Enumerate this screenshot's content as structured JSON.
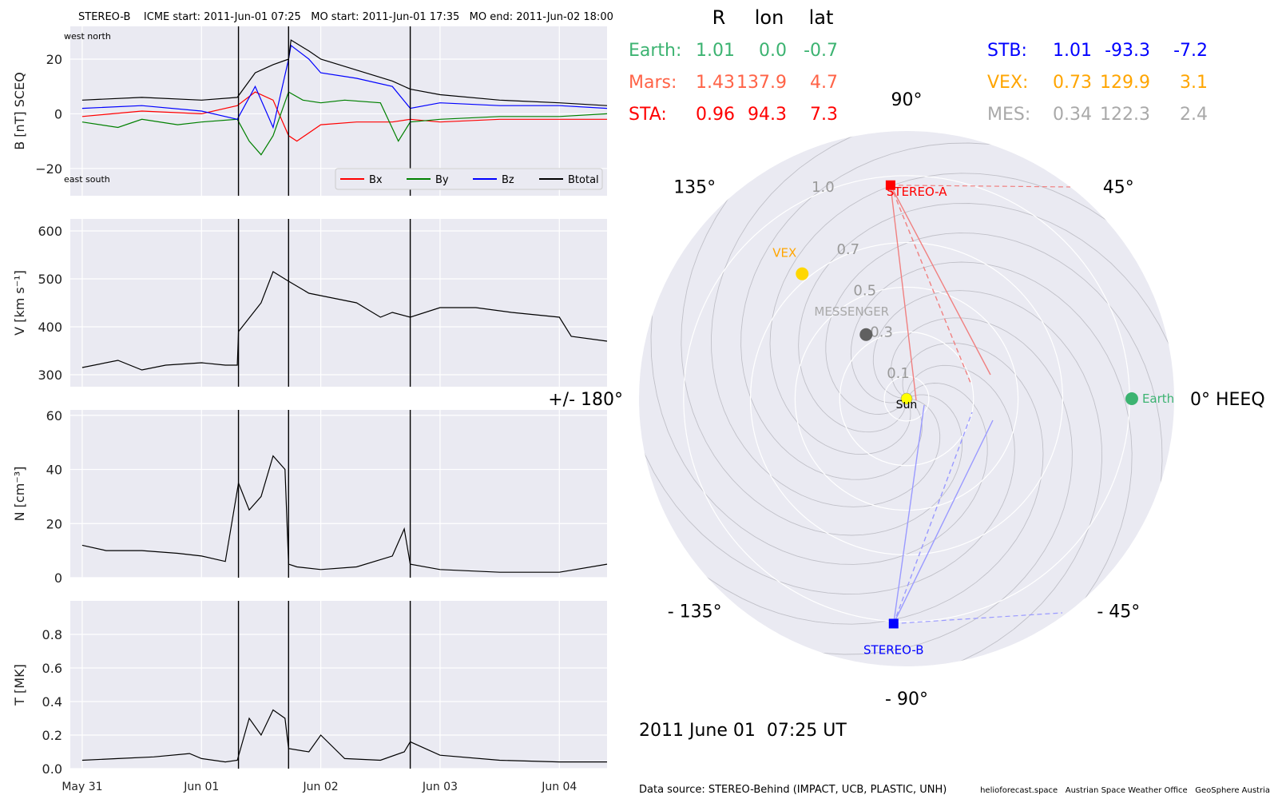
{
  "header": "STEREO-B    ICME start: 2011-Jun-01 07:25   MO start: 2011-Jun-01 17:35   MO end: 2011-Jun-02 18:00",
  "timestamp": "2011 June 01  07:25 UT",
  "data_source": "Data source: STEREO-Behind (IMPACT, UCB, PLASTIC, UNH)",
  "credits": "helioforecast.space   Austrian Space Weather Office   GeoSphere Austria",
  "colors": {
    "bx": "#ff0000",
    "by": "#008000",
    "bz": "#0000ff",
    "btotal": "#000000",
    "earth": "#3cb371",
    "mars": "#ff6347",
    "sta": "#ff0000",
    "stb": "#0000ff",
    "vex": "#ffa500",
    "mes": "#a9a9a9",
    "panel_bg": "#eaeaf2",
    "grid": "#ffffff"
  },
  "chart_data": [
    {
      "type": "line",
      "ylabel": "B [nT] SCEQ",
      "ylim": [
        -30,
        32
      ],
      "yticks": [
        "20",
        "0",
        "−20"
      ],
      "ytick_values": [
        20,
        0,
        -20
      ],
      "corner_labels": {
        "top_left": "west    north",
        "bottom_left": "east    south"
      },
      "event_lines_day": [
        1.31,
        1.73,
        2.75
      ],
      "series": [
        {
          "name": "Bx",
          "color": "#ff0000",
          "x_day": [
            0.0,
            0.5,
            1.0,
            1.3,
            1.45,
            1.6,
            1.73,
            1.8,
            2.0,
            2.3,
            2.6,
            2.75,
            3.0,
            3.5,
            4.0,
            4.4
          ],
          "values": [
            -1,
            1,
            0,
            3,
            8,
            5,
            -8,
            -10,
            -4,
            -3,
            -3,
            -2,
            -3,
            -2,
            -2,
            -2
          ]
        },
        {
          "name": "By",
          "color": "#008000",
          "x_day": [
            0.0,
            0.3,
            0.5,
            0.8,
            1.0,
            1.3,
            1.4,
            1.5,
            1.6,
            1.73,
            1.85,
            2.0,
            2.2,
            2.5,
            2.65,
            2.75,
            3.0,
            3.5,
            4.0,
            4.4
          ],
          "values": [
            -3,
            -5,
            -2,
            -4,
            -3,
            -2,
            -10,
            -15,
            -8,
            8,
            5,
            4,
            5,
            4,
            -10,
            -3,
            -2,
            -1,
            -1,
            0
          ]
        },
        {
          "name": "Bz",
          "color": "#0000ff",
          "x_day": [
            0.0,
            0.5,
            1.0,
            1.3,
            1.45,
            1.6,
            1.73,
            1.75,
            1.9,
            2.0,
            2.3,
            2.6,
            2.75,
            3.0,
            3.5,
            4.0,
            4.4
          ],
          "values": [
            2,
            3,
            1,
            -2,
            10,
            -5,
            20,
            25,
            20,
            15,
            13,
            10,
            2,
            4,
            3,
            3,
            2
          ]
        },
        {
          "name": "Btotal",
          "color": "#000000",
          "x_day": [
            0.0,
            0.5,
            1.0,
            1.3,
            1.45,
            1.6,
            1.73,
            1.75,
            1.9,
            2.0,
            2.3,
            2.6,
            2.75,
            3.0,
            3.5,
            4.0,
            4.4
          ],
          "values": [
            5,
            6,
            5,
            6,
            15,
            18,
            20,
            27,
            23,
            20,
            16,
            12,
            9,
            7,
            5,
            4,
            3
          ]
        }
      ],
      "legend": [
        "Bx",
        "By",
        "Bz",
        "Btotal"
      ]
    },
    {
      "type": "line",
      "ylabel": "V [km s⁻¹]",
      "ylim": [
        275,
        625
      ],
      "yticks": [
        "600",
        "500",
        "400",
        "300"
      ],
      "ytick_values": [
        600,
        500,
        400,
        300
      ],
      "event_lines_day": [
        1.31,
        1.73,
        2.75
      ],
      "series": [
        {
          "name": "",
          "color": "#000000",
          "x_day": [
            0.0,
            0.3,
            0.5,
            0.7,
            1.0,
            1.2,
            1.3,
            1.31,
            1.5,
            1.6,
            1.73,
            1.9,
            2.1,
            2.3,
            2.5,
            2.6,
            2.75,
            3.0,
            3.3,
            3.6,
            4.0,
            4.1,
            4.4
          ],
          "values": [
            315,
            330,
            310,
            320,
            325,
            320,
            320,
            390,
            450,
            515,
            495,
            470,
            460,
            450,
            420,
            430,
            420,
            440,
            440,
            430,
            420,
            380,
            370
          ]
        }
      ]
    },
    {
      "type": "line",
      "ylabel": "N [cm⁻³]",
      "ylim": [
        0,
        62
      ],
      "yticks": [
        "60",
        "40",
        "20",
        "0"
      ],
      "ytick_values": [
        60,
        40,
        20,
        0
      ],
      "event_lines_day": [
        1.31,
        1.73,
        2.75
      ],
      "series": [
        {
          "name": "",
          "color": "#000000",
          "x_day": [
            0.0,
            0.2,
            0.5,
            0.8,
            1.0,
            1.2,
            1.31,
            1.4,
            1.5,
            1.6,
            1.7,
            1.73,
            1.8,
            2.0,
            2.3,
            2.6,
            2.7,
            2.75,
            3.0,
            3.5,
            4.0,
            4.4
          ],
          "values": [
            12,
            10,
            10,
            9,
            8,
            6,
            35,
            25,
            30,
            45,
            40,
            5,
            4,
            3,
            4,
            8,
            18,
            5,
            3,
            2,
            2,
            5
          ]
        }
      ]
    },
    {
      "type": "line",
      "ylabel": "T [MK]",
      "ylim": [
        0,
        1.0
      ],
      "yticks": [
        "0.8",
        "0.6",
        "0.4",
        "0.2",
        "0.0"
      ],
      "ytick_values": [
        0.8,
        0.6,
        0.4,
        0.2,
        0.0
      ],
      "event_lines_day": [
        1.31,
        1.73,
        2.75
      ],
      "series": [
        {
          "name": "",
          "color": "#000000",
          "x_day": [
            0.0,
            0.3,
            0.6,
            0.9,
            1.0,
            1.2,
            1.3,
            1.4,
            1.5,
            1.6,
            1.7,
            1.73,
            1.9,
            2.0,
            2.2,
            2.5,
            2.7,
            2.75,
            3.0,
            3.5,
            4.0,
            4.4
          ],
          "values": [
            0.05,
            0.06,
            0.07,
            0.09,
            0.06,
            0.04,
            0.05,
            0.3,
            0.2,
            0.35,
            0.3,
            0.12,
            0.1,
            0.2,
            0.06,
            0.05,
            0.1,
            0.16,
            0.08,
            0.05,
            0.04,
            0.04
          ]
        }
      ],
      "xticks": [
        "May 31",
        "Jun 01",
        "Jun 02",
        "Jun 03",
        "Jun 04"
      ],
      "xtick_days": [
        0,
        1,
        2,
        3,
        4
      ]
    },
    {
      "type": "scatter",
      "kind": "polar",
      "table_header": [
        "R",
        "lon",
        "lat"
      ],
      "bodies_table": [
        {
          "name": "Earth:",
          "R": "1.01",
          "lon": "0.0",
          "lat": "-0.7",
          "color": "#3cb371"
        },
        {
          "name": "Mars:",
          "R": "1.43",
          "lon": "137.9",
          "lat": "4.7",
          "color": "#ff6347"
        },
        {
          "name": "STA:",
          "R": "0.96",
          "lon": "94.3",
          "lat": "7.3",
          "color": "#ff0000"
        },
        {
          "name": "STB:",
          "R": "1.01",
          "lon": "-93.3",
          "lat": "-7.2",
          "color": "#0000ff"
        },
        {
          "name": "VEX:",
          "R": "0.73",
          "lon": "129.9",
          "lat": "3.1",
          "color": "#ffa500"
        },
        {
          "name": "MES:",
          "R": "0.34",
          "lon": "122.3",
          "lat": "2.4",
          "color": "#a9a9a9"
        }
      ],
      "angle_labels": [
        "90°",
        "45°",
        "0° HEEQ",
        "- 45°",
        "- 90°",
        "- 135°",
        "+/- 180°",
        "135°"
      ],
      "angle_values": [
        90,
        45,
        0,
        -45,
        -90,
        -135,
        180,
        135
      ],
      "radial_labels": [
        "0.1",
        "0.3",
        "0.5",
        "0.7",
        "1.0"
      ],
      "radial_values": [
        0.1,
        0.3,
        0.5,
        0.7,
        1.0
      ],
      "r_max": 1.2,
      "bodies": [
        {
          "label": "Sun",
          "lon": 0,
          "r": 0,
          "color": "#ffff00",
          "marker": "circle"
        },
        {
          "label": "Earth",
          "lon": 0.0,
          "r": 1.01,
          "color": "#3cb371",
          "marker": "circle"
        },
        {
          "label": "STEREO-A",
          "lon": 94.3,
          "r": 0.96,
          "color": "#ff0000",
          "marker": "square"
        },
        {
          "label": "STEREO-B",
          "lon": -93.3,
          "r": 1.01,
          "color": "#0000ff",
          "marker": "square"
        },
        {
          "label": "VEX",
          "lon": 129.9,
          "r": 0.73,
          "color": "#ffd700",
          "marker": "circle"
        },
        {
          "label": "MESSENGER",
          "lon": 122.3,
          "r": 0.34,
          "color": "#606060",
          "marker": "circle"
        }
      ]
    }
  ]
}
